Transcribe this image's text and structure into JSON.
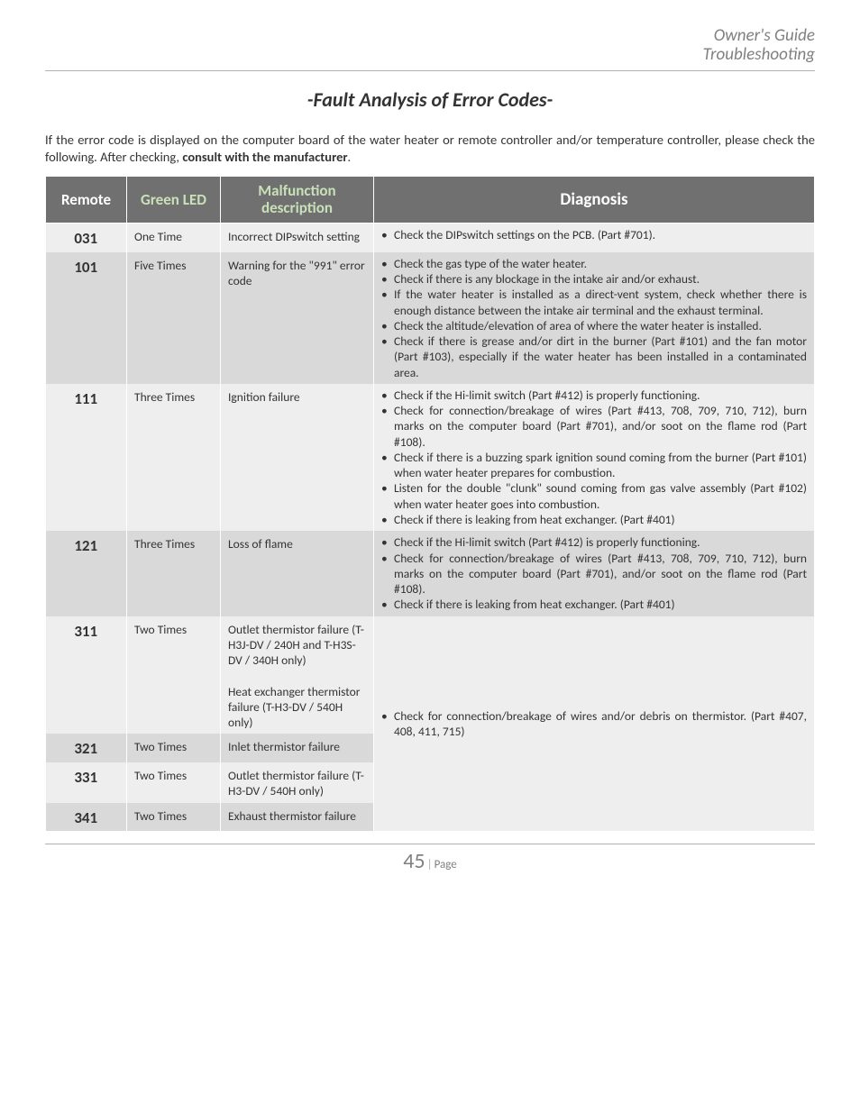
{
  "header": {
    "guide": "Owner's Guide",
    "section": "Troubleshooting"
  },
  "title": "-Fault Analysis of Error Codes-",
  "intro": {
    "pre": "If the error code is displayed on the computer board of the water heater or remote controller and/or temperature controller, please check the following.  After checking, ",
    "bold": "consult with the manufacturer",
    "post": "."
  },
  "columns": {
    "remote": "Remote",
    "green_top": "Green",
    "green_bot": "LED",
    "mal_top": "Malfunction",
    "mal_bot": "description",
    "diag": "Diagnosis"
  },
  "rows": [
    {
      "code": "031",
      "led": "One Time",
      "mal": "Incorrect DIPswitch setting",
      "diag": [
        "Check the DIPswitch settings on the PCB. (Part #701)."
      ],
      "shade": "light"
    },
    {
      "code": "101",
      "led": "Five Times",
      "mal": "Warning for the \"991\" error code",
      "diag": [
        "Check the gas type of the water heater.",
        "Check if there is any blockage in the intake air and/or exhaust.",
        "If the water heater is installed as a direct-vent system, check whether there is enough distance between the intake air terminal and the exhaust terminal.",
        "Check the altitude/elevation of area of where the water heater is installed.",
        "Check if there is grease and/or dirt in the burner (Part #101) and the fan motor (Part #103), especially if the water heater has been installed in a contaminated area."
      ],
      "shade": "dark"
    },
    {
      "code": "111",
      "led": "Three Times",
      "mal": "Ignition failure",
      "diag": [
        "Check if the Hi-limit switch (Part #412) is properly functioning.",
        "Check for connection/breakage of wires (Part #413, 708, 709, 710, 712), burn marks on the computer board (Part #701), and/or soot on the flame rod (Part #108).",
        "Check if there is a buzzing spark ignition sound coming from the burner (Part #101) when water heater prepares for combustion.",
        "Listen for the double \"clunk\" sound coming from gas valve assembly (Part #102) when water heater goes into combustion.",
        "Check if there is leaking from heat exchanger. (Part #401)"
      ],
      "shade": "light"
    },
    {
      "code": "121",
      "led": "Three Times",
      "mal": "Loss of flame",
      "diag": [
        "Check if the Hi-limit switch (Part #412) is properly functioning.",
        "Check for connection/breakage of wires (Part #413, 708, 709, 710, 712), burn marks on the computer board (Part #701), and/or soot on the flame rod (Part #108).",
        "Check if there is leaking from heat exchanger. (Part #401)"
      ],
      "shade": "dark"
    }
  ],
  "merged_group": {
    "diag": [
      "Check for connection/breakage of wires and/or debris on thermistor. (Part #407, 408, 411, 715)"
    ],
    "rows": [
      {
        "code": "311",
        "led": "Two Times",
        "mal": "Outlet thermistor failure (T-H3J-DV / 240H and T-H3S-DV / 340H only)\n\nHeat exchanger thermistor failure (T-H3-DV / 540H only)",
        "shade": "light"
      },
      {
        "code": "321",
        "led": "Two Times",
        "mal": "Inlet thermistor failure",
        "shade": "dark"
      },
      {
        "code": "331",
        "led": "Two Times",
        "mal": "Outlet thermistor failure (T-H3-DV / 540H only)",
        "shade": "light"
      },
      {
        "code": "341",
        "led": "Two Times",
        "mal": "Exhaust thermistor failure",
        "shade": "dark"
      }
    ]
  },
  "footer": {
    "page": "45",
    "label": "Page"
  }
}
